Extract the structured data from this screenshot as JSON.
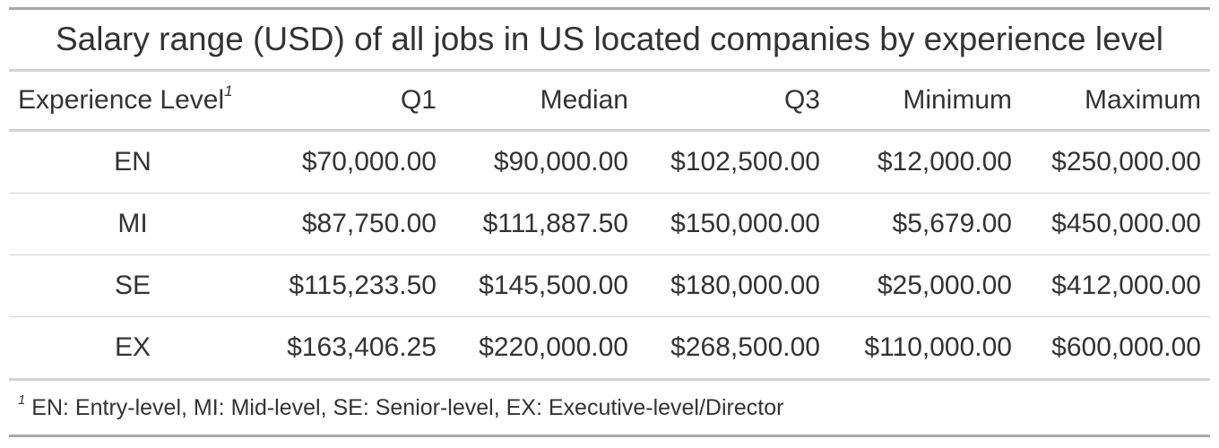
{
  "table": {
    "title": "Salary range (USD) of all jobs in US located companies by experience level",
    "footnote_mark": "1",
    "columns": [
      "Experience Level",
      "Q1",
      "Median",
      "Q3",
      "Minimum",
      "Maximum"
    ],
    "rows": [
      {
        "level": "EN",
        "q1": "$70,000.00",
        "median": "$90,000.00",
        "q3": "$102,500.00",
        "min": "$12,000.00",
        "max": "$250,000.00"
      },
      {
        "level": "MI",
        "q1": "$87,750.00",
        "median": "$111,887.50",
        "q3": "$150,000.00",
        "min": "$5,679.00",
        "max": "$450,000.00"
      },
      {
        "level": "SE",
        "q1": "$115,233.50",
        "median": "$145,500.00",
        "q3": "$180,000.00",
        "min": "$25,000.00",
        "max": "$412,000.00"
      },
      {
        "level": "EX",
        "q1": "$163,406.25",
        "median": "$220,000.00",
        "q3": "$268,500.00",
        "min": "$110,000.00",
        "max": "$600,000.00"
      }
    ],
    "footnote": "EN: Entry-level, MI: Mid-level, SE: Senior-level, EX: Executive-level/Director"
  }
}
